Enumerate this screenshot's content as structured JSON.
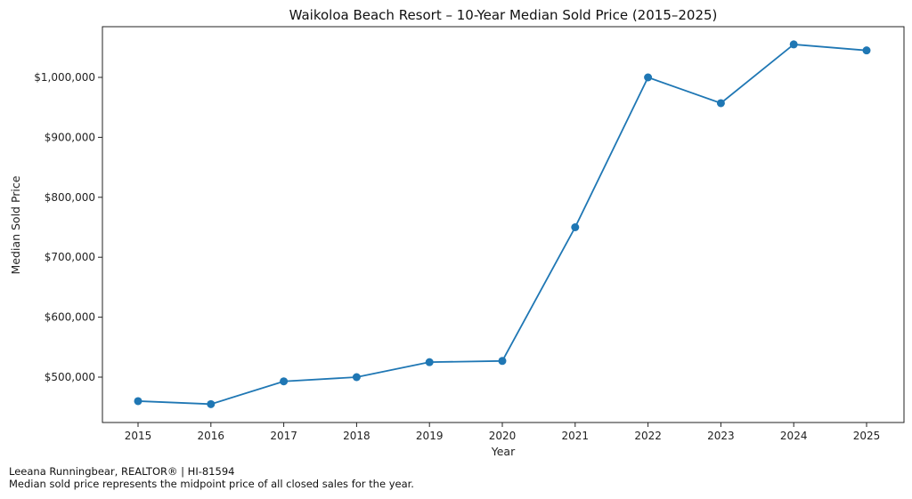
{
  "chart_data": {
    "type": "line",
    "title": "Waikoloa Beach Resort – 10-Year Median Sold Price (2015–2025)",
    "xlabel": "Year",
    "ylabel": "Median Sold Price",
    "categories": [
      "2015",
      "2016",
      "2017",
      "2018",
      "2019",
      "2020",
      "2021",
      "2022",
      "2023",
      "2024",
      "2025"
    ],
    "series": [
      {
        "name": "Median Sold Price",
        "color": "#1f77b4",
        "values": [
          460000,
          455000,
          493000,
          500000,
          525000,
          527000,
          750000,
          1000000,
          957000,
          1055000,
          1045000
        ]
      }
    ],
    "yticks": [
      500000,
      600000,
      700000,
      800000,
      900000,
      1000000
    ],
    "ytick_labels": [
      "$500,000",
      "$600,000",
      "$700,000",
      "$800,000",
      "$900,000",
      "$1,000,000"
    ],
    "ylim": [
      420000,
      1085000
    ],
    "grid": false,
    "legend": null
  },
  "footer": {
    "line1": "Leeana Runningbear, REALTOR® | HI-81594",
    "line2": "Median sold price represents the midpoint price of all closed sales for the year."
  }
}
